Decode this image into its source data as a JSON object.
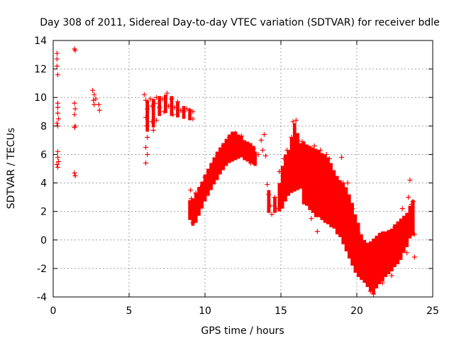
{
  "chart_data": {
    "type": "scatter",
    "title": "Day 308 of 2011, Sidereal Day-to-day VTEC variation (SDTVAR) for receiver bdle",
    "xlabel": "GPS time / hours",
    "ylabel": "SDTVAR / TECUs",
    "xlim": [
      0,
      25
    ],
    "ylim": [
      -4,
      14
    ],
    "xticks": [
      0,
      5,
      10,
      15,
      20,
      25
    ],
    "yticks": [
      -4,
      -2,
      0,
      2,
      4,
      6,
      8,
      10,
      12,
      14
    ],
    "xtick_labels": [
      "0",
      "5",
      "10",
      "15",
      "20",
      "25"
    ],
    "ytick_labels": [
      "-4",
      "-2",
      "0",
      "2",
      "4",
      "6",
      "8",
      "10",
      "12",
      "14"
    ],
    "grid": true,
    "marker": "+",
    "color": "#ff0000",
    "series": [
      {
        "name": "SDTVAR",
        "points": [
          [
            0.25,
            12.7
          ],
          [
            0.25,
            12.2
          ],
          [
            0.3,
            11.6
          ],
          [
            0.25,
            13.1
          ],
          [
            0.3,
            9.6
          ],
          [
            0.3,
            9.3
          ],
          [
            0.3,
            8.9
          ],
          [
            0.35,
            8.5
          ],
          [
            0.25,
            8.2
          ],
          [
            0.3,
            8.0
          ],
          [
            0.3,
            6.2
          ],
          [
            0.3,
            5.8
          ],
          [
            0.35,
            5.5
          ],
          [
            0.25,
            5.3
          ],
          [
            0.3,
            5.1
          ],
          [
            1.4,
            13.4
          ],
          [
            1.45,
            13.3
          ],
          [
            1.4,
            9.6
          ],
          [
            1.45,
            9.2
          ],
          [
            1.4,
            8.8
          ],
          [
            1.45,
            8.0
          ],
          [
            1.4,
            7.9
          ],
          [
            1.4,
            4.7
          ],
          [
            1.45,
            4.5
          ],
          [
            2.6,
            10.5
          ],
          [
            2.7,
            10.2
          ],
          [
            2.65,
            9.8
          ],
          [
            2.7,
            9.5
          ],
          [
            2.8,
            9.9
          ],
          [
            3.0,
            9.5
          ],
          [
            3.05,
            9.1
          ],
          [
            6.0,
            10.2
          ],
          [
            6.1,
            9.8
          ],
          [
            6.2,
            9.2
          ],
          [
            6.1,
            8.6
          ],
          [
            6.15,
            8.0
          ],
          [
            6.2,
            7.2
          ],
          [
            6.1,
            6.5
          ],
          [
            6.2,
            6.0
          ],
          [
            6.1,
            5.4
          ],
          [
            6.4,
            9.9
          ],
          [
            6.5,
            9.4
          ],
          [
            6.5,
            8.3
          ],
          [
            6.6,
            7.7
          ],
          [
            6.7,
            9.6
          ],
          [
            6.8,
            10.0
          ],
          [
            6.8,
            8.4
          ],
          [
            7.0,
            9.3
          ],
          [
            7.2,
            9.9
          ],
          [
            7.3,
            9.0
          ],
          [
            7.5,
            10.3
          ],
          [
            7.6,
            9.4
          ],
          [
            7.8,
            9.9
          ],
          [
            7.9,
            8.8
          ],
          [
            8.0,
            9.3
          ],
          [
            8.2,
            9.7
          ],
          [
            8.4,
            9.1
          ],
          [
            8.6,
            9.0
          ],
          [
            8.8,
            9.2
          ],
          [
            9.0,
            9.1
          ],
          [
            9.2,
            9.0
          ],
          [
            9.2,
            8.5
          ],
          [
            9.05,
            3.5
          ],
          [
            9.1,
            2.9
          ],
          [
            9.15,
            2.3
          ],
          [
            9.1,
            1.6
          ],
          [
            9.2,
            1.2
          ],
          [
            9.4,
            3.3
          ],
          [
            9.5,
            2.5
          ],
          [
            9.7,
            3.7
          ],
          [
            9.8,
            3.0
          ],
          [
            10.0,
            4.4
          ],
          [
            10.1,
            3.6
          ],
          [
            10.3,
            4.8
          ],
          [
            10.5,
            5.3
          ],
          [
            10.6,
            4.4
          ],
          [
            10.8,
            5.9
          ],
          [
            11.0,
            5.1
          ],
          [
            11.2,
            6.6
          ],
          [
            11.4,
            5.8
          ],
          [
            11.6,
            7.2
          ],
          [
            11.8,
            6.2
          ],
          [
            12.0,
            7.5
          ],
          [
            12.2,
            6.6
          ],
          [
            12.4,
            7.3
          ],
          [
            12.6,
            6.0
          ],
          [
            12.8,
            6.6
          ],
          [
            13.0,
            5.4
          ],
          [
            13.2,
            6.4
          ],
          [
            13.5,
            6.0
          ],
          [
            13.7,
            7.0
          ],
          [
            13.8,
            6.3
          ],
          [
            13.9,
            7.4
          ],
          [
            14.0,
            5.9
          ],
          [
            14.1,
            3.9
          ],
          [
            14.2,
            3.2
          ],
          [
            14.3,
            2.4
          ],
          [
            14.4,
            1.8
          ],
          [
            14.6,
            3.0
          ],
          [
            14.7,
            2.2
          ],
          [
            14.9,
            4.8
          ],
          [
            15.0,
            3.7
          ],
          [
            15.2,
            5.7
          ],
          [
            15.3,
            4.4
          ],
          [
            15.4,
            6.3
          ],
          [
            15.6,
            5.0
          ],
          [
            15.7,
            7.2
          ],
          [
            15.8,
            8.3
          ],
          [
            15.9,
            6.1
          ],
          [
            16.0,
            8.4
          ],
          [
            16.1,
            7.0
          ],
          [
            16.2,
            6.2
          ],
          [
            16.4,
            6.9
          ],
          [
            16.5,
            5.2
          ],
          [
            16.6,
            4.2
          ],
          [
            16.8,
            6.5
          ],
          [
            16.9,
            5.5
          ],
          [
            17.0,
            1.5
          ],
          [
            17.2,
            6.6
          ],
          [
            17.3,
            4.7
          ],
          [
            17.4,
            0.6
          ],
          [
            17.6,
            6.3
          ],
          [
            17.8,
            4.5
          ],
          [
            17.9,
            1.8
          ],
          [
            18.0,
            6.0
          ],
          [
            18.2,
            5.7
          ],
          [
            18.4,
            4.4
          ],
          [
            18.5,
            3.0
          ],
          [
            18.6,
            1.6
          ],
          [
            18.8,
            3.3
          ],
          [
            18.9,
            2.0
          ],
          [
            19.0,
            5.8
          ],
          [
            19.1,
            4.0
          ],
          [
            19.2,
            1.2
          ],
          [
            19.4,
            4.0
          ],
          [
            19.5,
            2.5
          ],
          [
            19.6,
            0.9
          ],
          [
            19.7,
            2.2
          ],
          [
            19.8,
            -0.5
          ],
          [
            20.0,
            -1.4
          ],
          [
            20.1,
            0.5
          ],
          [
            20.2,
            -2.2
          ],
          [
            20.4,
            -0.9
          ],
          [
            20.5,
            -1.9
          ],
          [
            20.7,
            -3.0
          ],
          [
            20.8,
            -1.3
          ],
          [
            20.9,
            -3.6
          ],
          [
            21.0,
            -2.0
          ],
          [
            21.1,
            -3.8
          ],
          [
            21.3,
            -0.1
          ],
          [
            21.4,
            -2.4
          ],
          [
            21.6,
            -1.0
          ],
          [
            21.7,
            -3.0
          ],
          [
            21.9,
            0.2
          ],
          [
            22.0,
            -1.9
          ],
          [
            22.2,
            -0.6
          ],
          [
            22.3,
            -2.5
          ],
          [
            22.5,
            0.9
          ],
          [
            22.6,
            -1.1
          ],
          [
            22.8,
            -0.7
          ],
          [
            23.0,
            2.2
          ],
          [
            23.1,
            -0.3
          ],
          [
            23.2,
            1.3
          ],
          [
            23.3,
            -0.9
          ],
          [
            23.4,
            3.0
          ],
          [
            23.5,
            4.2
          ],
          [
            23.6,
            2.5
          ],
          [
            23.7,
            2.7
          ],
          [
            23.8,
            0.4
          ],
          [
            23.8,
            -1.2
          ]
        ]
      }
    ],
    "bands": [
      [
        9.0,
        1.4,
        2.8
      ],
      [
        9.2,
        1.0,
        2.9
      ],
      [
        9.4,
        1.2,
        3.3
      ],
      [
        9.6,
        1.7,
        3.7
      ],
      [
        9.8,
        2.2,
        4.1
      ],
      [
        10.0,
        2.7,
        4.6
      ],
      [
        10.2,
        3.1,
        5.0
      ],
      [
        10.4,
        3.5,
        5.4
      ],
      [
        10.6,
        3.9,
        5.8
      ],
      [
        10.8,
        4.2,
        6.2
      ],
      [
        11.0,
        4.6,
        6.5
      ],
      [
        11.2,
        4.9,
        6.8
      ],
      [
        11.4,
        5.2,
        7.1
      ],
      [
        11.6,
        5.4,
        7.4
      ],
      [
        11.8,
        5.5,
        7.6
      ],
      [
        12.0,
        5.6,
        7.6
      ],
      [
        12.2,
        5.7,
        7.4
      ],
      [
        12.4,
        5.8,
        7.3
      ],
      [
        12.6,
        5.6,
        7.0
      ],
      [
        12.8,
        5.5,
        6.9
      ],
      [
        13.0,
        5.4,
        6.8
      ],
      [
        13.2,
        5.3,
        6.6
      ],
      [
        13.3,
        5.2,
        6.2
      ],
      [
        6.2,
        7.6,
        9.8
      ],
      [
        6.6,
        7.9,
        9.9
      ],
      [
        7.0,
        8.7,
        10.1
      ],
      [
        7.4,
        8.9,
        10.2
      ],
      [
        7.8,
        8.7,
        10.1
      ],
      [
        8.2,
        8.6,
        9.7
      ],
      [
        8.6,
        8.5,
        9.4
      ],
      [
        9.0,
        8.4,
        9.2
      ],
      [
        14.2,
        1.9,
        3.5
      ],
      [
        14.6,
        1.9,
        3.0
      ],
      [
        14.9,
        2.0,
        4.0
      ],
      [
        15.1,
        2.2,
        5.2
      ],
      [
        15.3,
        2.7,
        6.0
      ],
      [
        15.5,
        3.1,
        6.3
      ],
      [
        15.7,
        3.3,
        7.2
      ],
      [
        15.9,
        3.4,
        8.2
      ],
      [
        16.1,
        3.5,
        7.5
      ],
      [
        16.3,
        3.6,
        6.8
      ],
      [
        16.5,
        2.5,
        6.9
      ],
      [
        16.7,
        2.4,
        6.7
      ],
      [
        16.9,
        2.1,
        6.6
      ],
      [
        17.1,
        1.9,
        6.5
      ],
      [
        17.3,
        1.6,
        6.4
      ],
      [
        17.5,
        1.6,
        6.3
      ],
      [
        17.7,
        1.4,
        6.1
      ],
      [
        17.9,
        1.2,
        6.0
      ],
      [
        18.1,
        1.1,
        5.8
      ],
      [
        18.3,
        0.9,
        5.4
      ],
      [
        18.5,
        0.8,
        4.9
      ],
      [
        18.7,
        0.4,
        4.5
      ],
      [
        18.9,
        0.2,
        4.2
      ],
      [
        19.1,
        -0.3,
        4.0
      ],
      [
        19.3,
        -0.8,
        3.7
      ],
      [
        19.5,
        -1.3,
        3.2
      ],
      [
        19.7,
        -1.8,
        2.6
      ],
      [
        19.9,
        -2.3,
        1.8
      ],
      [
        20.1,
        -2.6,
        1.2
      ],
      [
        20.3,
        -2.8,
        0.4
      ],
      [
        20.5,
        -3.0,
        0.0
      ],
      [
        20.7,
        -3.3,
        -0.2
      ],
      [
        20.9,
        -3.6,
        -0.1
      ],
      [
        21.1,
        -3.8,
        0.1
      ],
      [
        21.3,
        -3.4,
        0.3
      ],
      [
        21.5,
        -3.1,
        0.5
      ],
      [
        21.7,
        -2.9,
        0.6
      ],
      [
        21.9,
        -2.6,
        0.6
      ],
      [
        22.1,
        -2.4,
        0.7
      ],
      [
        22.3,
        -2.2,
        0.8
      ],
      [
        22.5,
        -1.9,
        1.1
      ],
      [
        22.7,
        -1.7,
        1.3
      ],
      [
        22.9,
        -1.4,
        1.5
      ],
      [
        23.1,
        -0.9,
        1.7
      ],
      [
        23.3,
        -0.5,
        1.9
      ],
      [
        23.5,
        0.1,
        2.4
      ],
      [
        23.7,
        0.3,
        2.8
      ]
    ]
  }
}
